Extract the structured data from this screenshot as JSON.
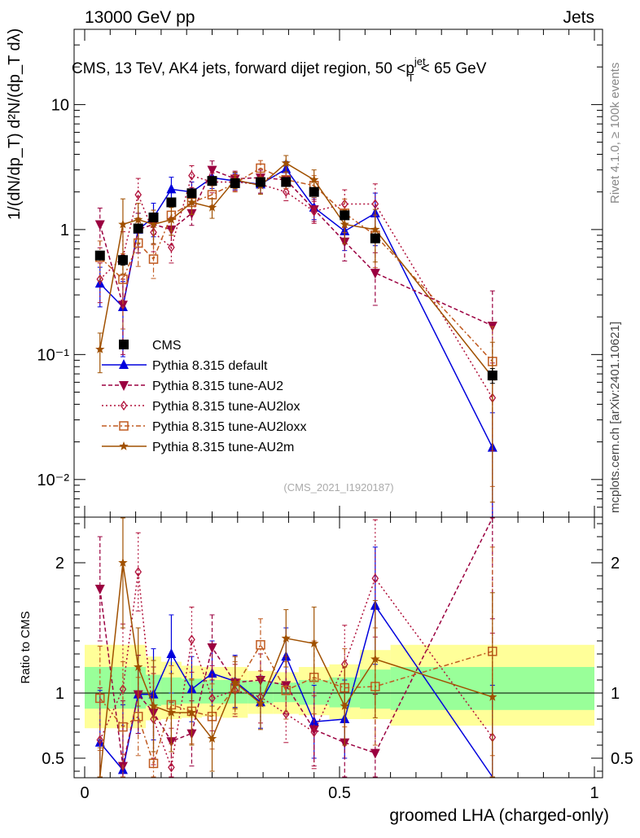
{
  "header": {
    "left": "13000 GeV pp",
    "right": "Jets"
  },
  "side_labels": {
    "rivet": "Rivet 4.1.0, ≥ 100k events",
    "mcplots": "mcplots.cern.ch [arXiv:2401.10621]"
  },
  "watermark": "(CMS_2021_I1920187)",
  "colors": {
    "cms": "#000000",
    "default": "#0000dd",
    "au2": "#9b0040",
    "au2lox": "#b0103a",
    "au2loxx": "#c05a20",
    "au2m": "#a05000",
    "band_yellow": "#ffff99",
    "band_green": "#99ff99"
  },
  "chart_data": [
    {
      "type": "line",
      "panel": "main",
      "title": "CMS, 13 TeV, AK4 jets, forward dijet region, 50 <p_T^{jet}< 65 GeV",
      "ylabel": "1/(dN/dp_T) d²N/(dp_T dλ)",
      "yscale": "log",
      "ylim": [
        0.005,
        40
      ],
      "xlim": [
        -0.02,
        1.0
      ],
      "y_ticks": [
        {
          "v": 10,
          "label": "10"
        },
        {
          "v": 1,
          "label": "1"
        },
        {
          "v": 0.1,
          "label": "10⁻¹"
        },
        {
          "v": 0.01,
          "label": "10⁻²"
        }
      ],
      "legend_position": "center-left",
      "series": [
        {
          "name": "CMS",
          "key": "cms",
          "marker": "square",
          "dash": "",
          "x": [
            0.03,
            0.075,
            0.105,
            0.135,
            0.17,
            0.21,
            0.25,
            0.295,
            0.345,
            0.395,
            0.45,
            0.51,
            0.57,
            0.8
          ],
          "values": [
            0.62,
            0.57,
            1.02,
            1.25,
            1.65,
            1.95,
            2.45,
            2.35,
            2.4,
            2.4,
            2.0,
            1.3,
            0.85,
            0.068
          ]
        },
        {
          "name": "Pythia 8.315 default",
          "key": "default",
          "marker": "triangle",
          "dash": "",
          "x": [
            0.03,
            0.075,
            0.105,
            0.135,
            0.17,
            0.21,
            0.25,
            0.295,
            0.345,
            0.395,
            0.45,
            0.51,
            0.57,
            0.8
          ],
          "values": [
            0.37,
            0.24,
            1.0,
            1.25,
            2.1,
            2.0,
            2.6,
            2.45,
            2.3,
            3.05,
            1.5,
            0.97,
            1.35,
            0.018
          ]
        },
        {
          "name": "Pythia 8.315 tune-AU2",
          "key": "au2",
          "marker": "triangle-down",
          "dash": "5,3",
          "x": [
            0.03,
            0.075,
            0.105,
            0.135,
            0.17,
            0.21,
            0.25,
            0.295,
            0.345,
            0.395,
            0.45,
            0.51,
            0.57,
            0.8
          ],
          "values": [
            1.1,
            0.25,
            1.0,
            1.1,
            1.0,
            1.35,
            3.0,
            2.55,
            2.6,
            2.5,
            1.45,
            0.8,
            0.45,
            0.17
          ]
        },
        {
          "name": "Pythia 8.315 tune-AU2lox",
          "key": "au2lox",
          "marker": "diamond",
          "dash": "2,3",
          "x": [
            0.03,
            0.075,
            0.105,
            0.135,
            0.17,
            0.21,
            0.25,
            0.295,
            0.345,
            0.395,
            0.45,
            0.51,
            0.57,
            0.8
          ],
          "values": [
            0.4,
            0.6,
            1.9,
            0.95,
            0.72,
            2.7,
            2.4,
            2.4,
            2.3,
            2.0,
            1.4,
            1.6,
            1.6,
            0.045
          ]
        },
        {
          "name": "Pythia 8.315 tune-AU2loxx",
          "key": "au2loxx",
          "marker": "square-open",
          "dash": "6,3,2,3",
          "x": [
            0.03,
            0.075,
            0.105,
            0.135,
            0.17,
            0.21,
            0.25,
            0.295,
            0.345,
            0.395,
            0.45,
            0.51,
            0.57,
            0.8
          ],
          "values": [
            0.6,
            0.4,
            0.78,
            0.58,
            1.3,
            1.65,
            1.9,
            2.35,
            3.1,
            2.5,
            2.25,
            1.35,
            0.9,
            0.088
          ]
        },
        {
          "name": "Pythia 8.315 tune-AU2m",
          "key": "au2m",
          "marker": "star",
          "dash": "",
          "x": [
            0.03,
            0.075,
            0.105,
            0.135,
            0.17,
            0.21,
            0.25,
            0.295,
            0.345,
            0.395,
            0.45,
            0.51,
            0.57,
            0.8
          ],
          "values": [
            0.11,
            1.1,
            1.2,
            1.1,
            1.2,
            1.65,
            1.5,
            2.5,
            2.25,
            3.4,
            2.5,
            1.1,
            1.0,
            0.066
          ]
        }
      ]
    },
    {
      "type": "line",
      "panel": "ratio",
      "ylabel": "Ratio to CMS",
      "xlabel": "groomed LHA (charged-only)",
      "ylim": [
        0.35,
        2.35
      ],
      "xlim": [
        -0.02,
        1.0
      ],
      "y_ticks": [
        {
          "v": 2,
          "label": "2"
        },
        {
          "v": 1,
          "label": "1"
        },
        {
          "v": 0.5,
          "label": "0.5"
        }
      ],
      "x_ticks": [
        {
          "v": 0,
          "label": "0"
        },
        {
          "v": 0.5,
          "label": "0.5"
        },
        {
          "v": 1,
          "label": "1"
        }
      ],
      "bands": {
        "edges": [
          0.0,
          0.09,
          0.12,
          0.15,
          0.19,
          0.23,
          0.27,
          0.32,
          0.37,
          0.42,
          0.48,
          0.54,
          0.6,
          1.0
        ],
        "yellow_lo": [
          0.73,
          0.73,
          0.79,
          0.8,
          0.81,
          0.82,
          0.81,
          0.84,
          0.84,
          0.83,
          0.8,
          0.8,
          0.75,
          0.74
        ],
        "yellow_hi": [
          1.37,
          1.37,
          1.28,
          1.24,
          1.21,
          1.2,
          1.2,
          1.17,
          1.16,
          1.2,
          1.22,
          1.33,
          1.37,
          1.37
        ],
        "green_lo": [
          0.88,
          0.88,
          0.9,
          0.91,
          0.92,
          0.92,
          0.92,
          0.92,
          0.93,
          0.91,
          0.89,
          0.88,
          0.87,
          0.87
        ],
        "green_hi": [
          1.2,
          1.2,
          1.14,
          1.12,
          1.11,
          1.1,
          1.1,
          1.09,
          1.08,
          1.1,
          1.12,
          1.18,
          1.2,
          1.2
        ]
      },
      "series": [
        {
          "key": "default",
          "marker": "triangle",
          "dash": "",
          "x": [
            0.03,
            0.075,
            0.105,
            0.135,
            0.17,
            0.21,
            0.25,
            0.295,
            0.345,
            0.395,
            0.45,
            0.51,
            0.57,
            0.8
          ],
          "values": [
            0.62,
            0.41,
            0.99,
            0.99,
            1.3,
            1.03,
            1.15,
            1.09,
            0.93,
            1.28,
            0.78,
            0.8,
            1.67,
            0.26
          ]
        },
        {
          "key": "au2",
          "marker": "triangle-down",
          "dash": "5,3",
          "x": [
            0.03,
            0.075,
            0.105,
            0.135,
            0.17,
            0.21,
            0.25,
            0.295,
            0.345,
            0.395,
            0.45,
            0.51,
            0.57,
            0.8
          ],
          "values": [
            1.8,
            0.44,
            0.99,
            0.85,
            0.63,
            0.69,
            1.35,
            1.08,
            1.1,
            1.06,
            0.72,
            0.62,
            0.54,
            2.37
          ]
        },
        {
          "key": "au2lox",
          "marker": "diamond",
          "dash": "2,3",
          "x": [
            0.03,
            0.075,
            0.105,
            0.135,
            0.17,
            0.21,
            0.25,
            0.295,
            0.345,
            0.395,
            0.45,
            0.51,
            0.57,
            0.8
          ],
          "values": [
            0.64,
            1.03,
            1.93,
            0.8,
            0.43,
            1.41,
            0.96,
            1.02,
            0.97,
            0.84,
            0.7,
            1.22,
            1.88,
            0.66
          ]
        },
        {
          "key": "au2loxx",
          "marker": "square-open",
          "dash": "6,3,2,3",
          "x": [
            0.03,
            0.075,
            0.105,
            0.135,
            0.17,
            0.21,
            0.25,
            0.295,
            0.345,
            0.395,
            0.45,
            0.51,
            0.57,
            0.8
          ],
          "values": [
            0.96,
            0.74,
            0.82,
            0.46,
            0.91,
            0.86,
            0.82,
            1.04,
            1.37,
            1.02,
            1.12,
            1.04,
            1.05,
            1.32
          ]
        },
        {
          "key": "au2m",
          "marker": "star",
          "dash": "",
          "x": [
            0.03,
            0.075,
            0.105,
            0.135,
            0.17,
            0.21,
            0.25,
            0.295,
            0.345,
            0.395,
            0.45,
            0.51,
            0.57,
            0.8
          ],
          "values": [
            0.18,
            2.0,
            1.2,
            0.9,
            0.85,
            0.85,
            0.65,
            1.08,
            0.92,
            1.42,
            1.38,
            0.9,
            1.26,
            0.97
          ]
        }
      ]
    }
  ]
}
